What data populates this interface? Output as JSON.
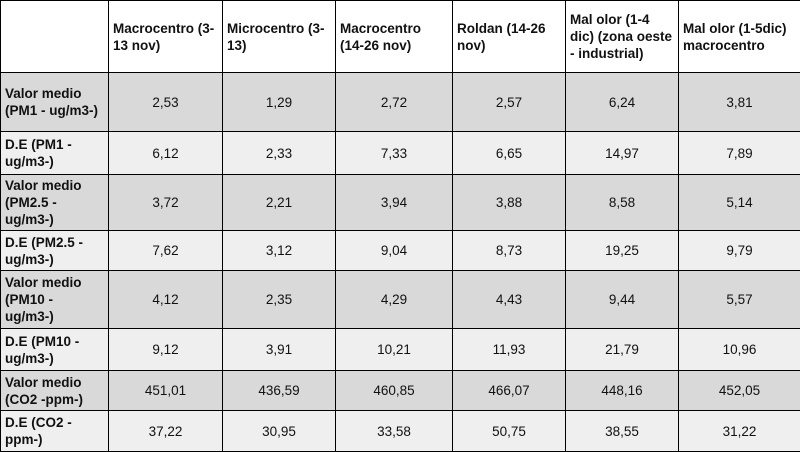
{
  "table": {
    "header": [
      "Macrocentro (3-13 nov)",
      "Microcentro (3-13)",
      "Macrocentro (14-26 nov)",
      "Roldan (14-26 nov)",
      "Mal olor (1-4 dic) (zona oeste - industrial)",
      "Mal olor (1-5dic) macrocentro"
    ],
    "rows": [
      {
        "label": "Valor medio (PM1 - ug/m3-)",
        "values": [
          "2,53",
          "1,29",
          "2,72",
          "2,57",
          "6,24",
          "3,81"
        ]
      },
      {
        "label": "D.E (PM1 - ug/m3-)",
        "values": [
          "6,12",
          "2,33",
          "7,33",
          "6,65",
          "14,97",
          "7,89"
        ]
      },
      {
        "label": "Valor medio (PM2.5 - ug/m3-)",
        "values": [
          "3,72",
          "2,21",
          "3,94",
          "3,88",
          "8,58",
          "5,14"
        ]
      },
      {
        "label": "D.E (PM2.5 - ug/m3-)",
        "values": [
          "7,62",
          "3,12",
          "9,04",
          "8,73",
          "19,25",
          "9,79"
        ]
      },
      {
        "label": "Valor medio (PM10 - ug/m3-)",
        "values": [
          "4,12",
          "2,35",
          "4,29",
          "4,43",
          "9,44",
          "5,57"
        ]
      },
      {
        "label": "D.E (PM10 - ug/m3-)",
        "values": [
          "9,12",
          "3,91",
          "10,21",
          "11,93",
          "21,79",
          "10,96"
        ]
      },
      {
        "label": "Valor medio (CO2 -ppm-)",
        "values": [
          "451,01",
          "436,59",
          "460,85",
          "466,07",
          "448,16",
          "452,05"
        ]
      },
      {
        "label": "D.E (CO2 - ppm-)",
        "values": [
          "37,22",
          "30,95",
          "33,58",
          "50,75",
          "38,55",
          "31,22"
        ]
      }
    ]
  }
}
